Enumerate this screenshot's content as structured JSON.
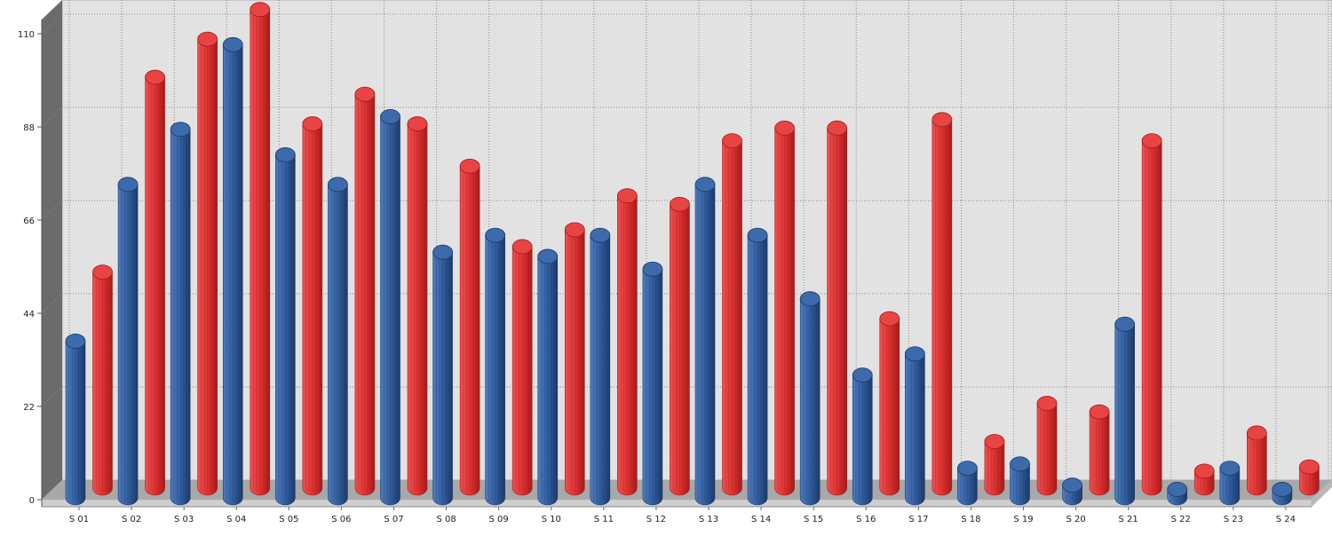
{
  "chart_data": {
    "type": "bar",
    "style": "3d-cylinder",
    "categories": [
      "S 01",
      "S 02",
      "S 03",
      "S 04",
      "S 05",
      "S 06",
      "S 07",
      "S 08",
      "S 09",
      "S 10",
      "S 11",
      "S 12",
      "S 13",
      "S 14",
      "S 15",
      "S 16",
      "S 17",
      "S 18",
      "S 19",
      "S 20",
      "S 21",
      "S 22",
      "S 23",
      "S 24"
    ],
    "series": [
      {
        "color": "#2f5b9a",
        "values": [
          37,
          74,
          87,
          107,
          81,
          74,
          90,
          58,
          62,
          57,
          62,
          54,
          74,
          62,
          47,
          29,
          34,
          7,
          8,
          3,
          41,
          2,
          7,
          2
        ]
      },
      {
        "color": "#d93030",
        "values": [
          51,
          97,
          106,
          113,
          86,
          93,
          86,
          76,
          57,
          61,
          69,
          67,
          82,
          85,
          85,
          40,
          87,
          11,
          20,
          18,
          82,
          4,
          13,
          5
        ]
      }
    ],
    "y_ticks": [
      "0",
      "22",
      "44",
      "66",
      "88",
      "110"
    ],
    "ylim": [
      0,
      115
    ],
    "grid": true,
    "legend": "none",
    "colors": {
      "plot_background": "#e2e2e2",
      "left_wall": "#6b6b6b",
      "floor": "#a8a8a8",
      "floor_edge": "#cfcfcf",
      "grid": "#8a8a8a"
    }
  }
}
